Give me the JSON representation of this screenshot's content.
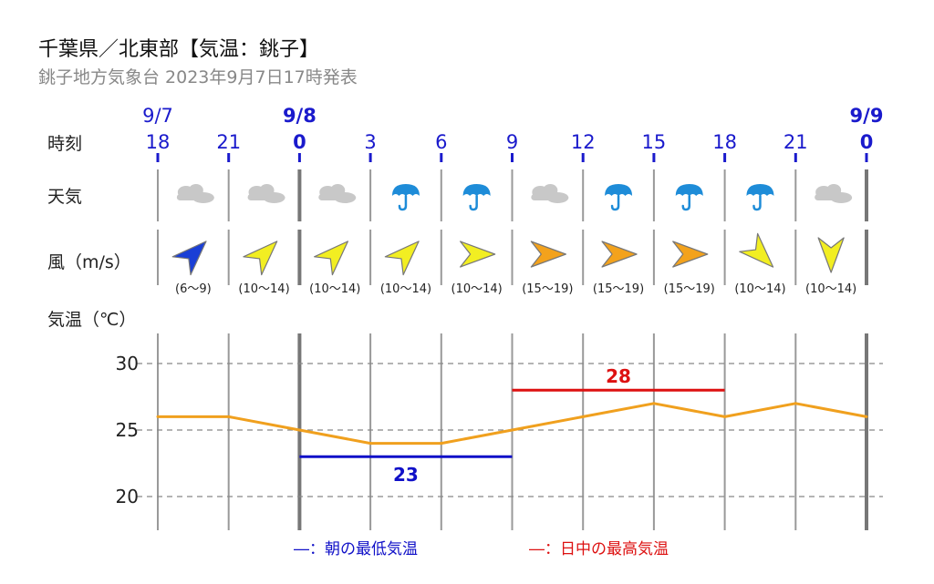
{
  "header": {
    "title": "千葉県／北東部【気温：銚子】",
    "subtitle": "銚子地方気象台 2023年9月7日17時発表"
  },
  "row_labels": {
    "time": "時刻",
    "weather": "天気",
    "wind": "風（m/s）",
    "temp": "気温（℃）"
  },
  "colors": {
    "time_blue": "#1a1acc",
    "temp_line": "#f0a01e",
    "min_line": "#1010c8",
    "max_line": "#dd1111",
    "grid": "#999999",
    "rain": "#1e8cd8"
  },
  "dates": [
    {
      "label": "9/7",
      "bold": false,
      "slot": 0
    },
    {
      "label": "9/8",
      "bold": true,
      "slot": 2
    },
    {
      "label": "9/9",
      "bold": true,
      "slot": 10
    }
  ],
  "hours": [
    "18",
    "21",
    "0",
    "3",
    "6",
    "9",
    "12",
    "15",
    "18",
    "21",
    "0"
  ],
  "weather": [
    "cloud-icon",
    "cloud-icon",
    "cloud-icon",
    "umbrella-icon",
    "umbrella-icon",
    "cloud-icon",
    "umbrella-icon",
    "umbrella-icon",
    "umbrella-icon",
    "cloud-icon"
  ],
  "wind": [
    {
      "label": "(6～9)",
      "color": "#1a3fd6",
      "dir": "NE"
    },
    {
      "label": "(10～14)",
      "color": "#f2ee22",
      "dir": "NE"
    },
    {
      "label": "(10～14)",
      "color": "#f2ee22",
      "dir": "NE"
    },
    {
      "label": "(10～14)",
      "color": "#f2ee22",
      "dir": "NE"
    },
    {
      "label": "(10～14)",
      "color": "#f2ee22",
      "dir": "E"
    },
    {
      "label": "(15～19)",
      "color": "#f3a21c",
      "dir": "E"
    },
    {
      "label": "(15～19)",
      "color": "#f3a21c",
      "dir": "E"
    },
    {
      "label": "(15～19)",
      "color": "#f3a21c",
      "dir": "E"
    },
    {
      "label": "(10～14)",
      "color": "#f2ee22",
      "dir": "SE"
    },
    {
      "label": "(10～14)",
      "color": "#f2ee22",
      "dir": "S"
    }
  ],
  "chart_data": {
    "type": "line",
    "x": [
      "18",
      "21",
      "0",
      "3",
      "6",
      "9",
      "12",
      "15",
      "18",
      "21",
      "0"
    ],
    "series": [
      {
        "values": [
          26,
          26,
          25,
          24,
          24,
          25,
          26,
          27,
          26,
          27,
          26
        ]
      }
    ],
    "ylim": [
      18,
      32
    ],
    "yticks": [
      20,
      25,
      30
    ],
    "grid": true,
    "min_temp": {
      "value": 23,
      "label": "23",
      "from_slot": 2,
      "to_slot": 5
    },
    "max_temp": {
      "value": 28,
      "label": "28",
      "from_slot": 5,
      "to_slot": 8
    }
  },
  "legend": {
    "min_label": "―：朝の最低気温",
    "max_label": "―：日中の最高気温"
  }
}
